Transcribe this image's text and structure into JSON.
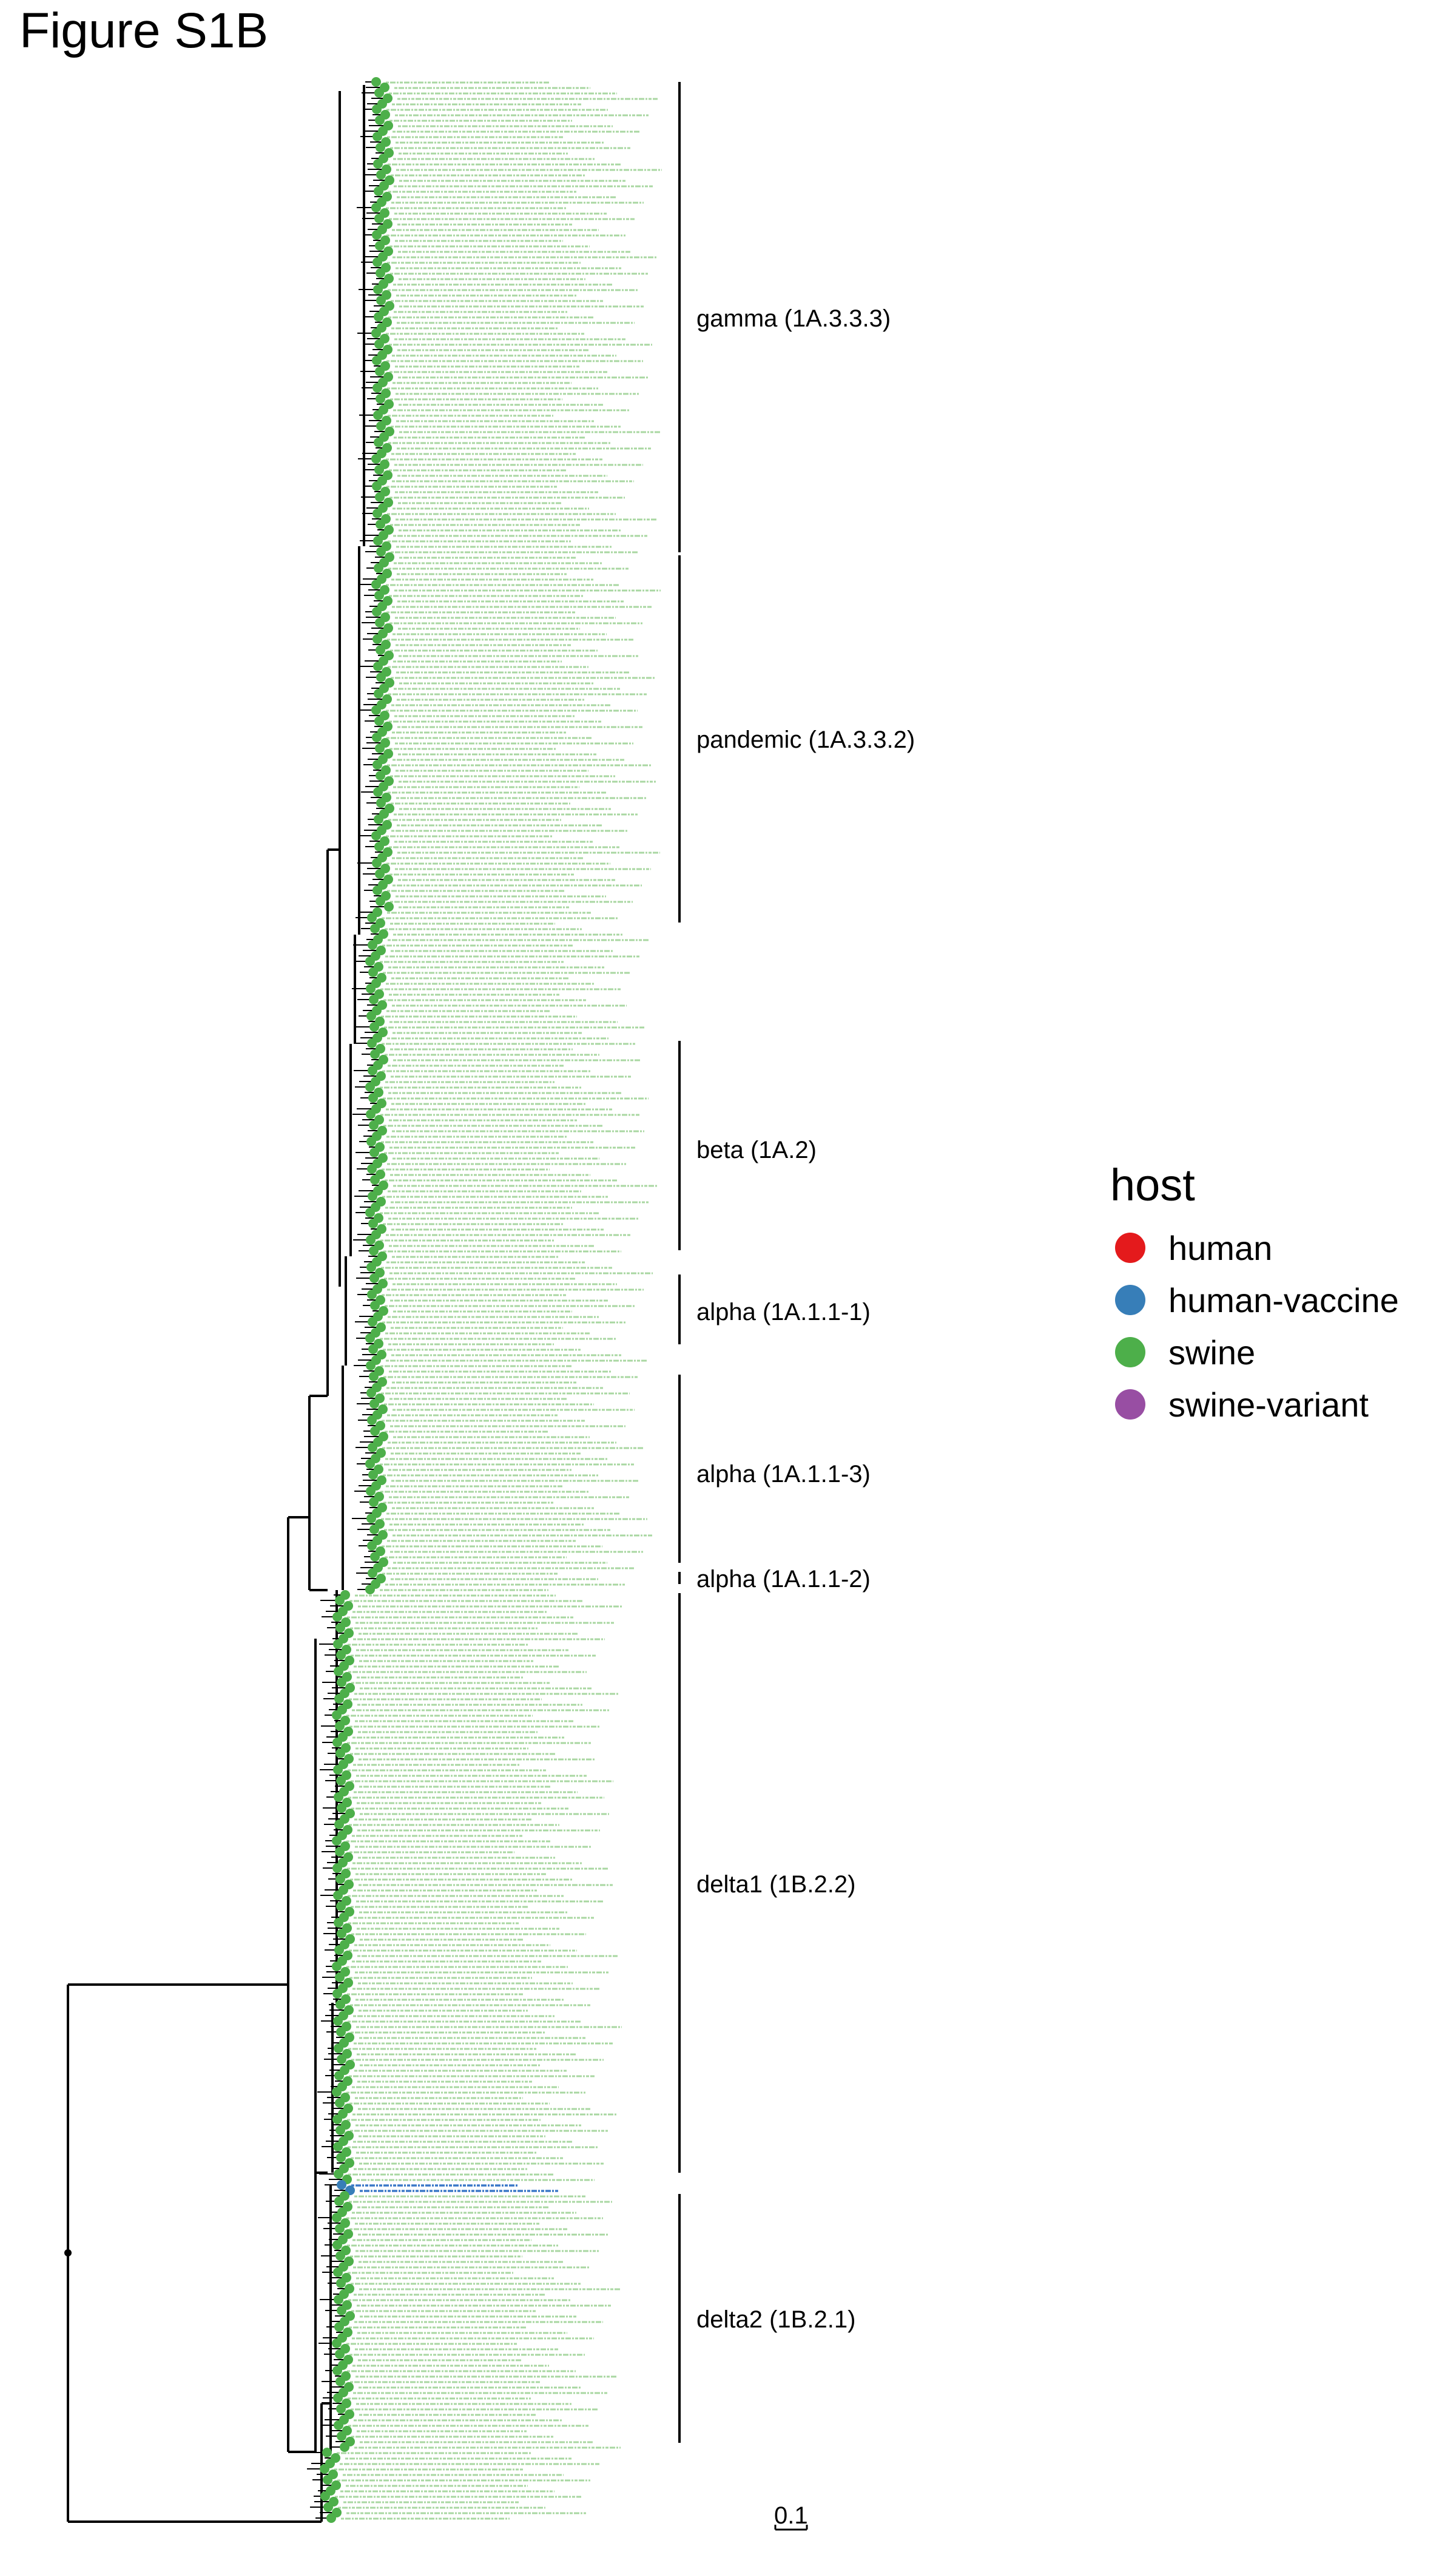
{
  "title": "Figure S1B",
  "legend": {
    "title": "host",
    "items": [
      {
        "label": "human",
        "color": "#e41a1c"
      },
      {
        "label": "human-vaccine",
        "color": "#377eb8"
      },
      {
        "label": "swine",
        "color": "#4daf4a"
      },
      {
        "label": "swine-variant",
        "color": "#984ea3"
      }
    ]
  },
  "clades": [
    {
      "label": "gamma (1A.3.3.3)"
    },
    {
      "label": "pandemic (1A.3.3.2)"
    },
    {
      "label": "beta (1A.2)"
    },
    {
      "label": "alpha (1A.1.1-1)"
    },
    {
      "label": "alpha (1A.1.1-3)"
    },
    {
      "label": "alpha (1A.1.1-2)"
    },
    {
      "label": "delta1 (1B.2.2)"
    },
    {
      "label": "delta2 (1B.2.1)"
    }
  ],
  "scale_bar": {
    "label": "0.1"
  },
  "colors": {
    "swine_tip_text": "#a9d7a2",
    "human_tip_text": "#e8303a",
    "vaccine_tip_text": "#3b78c8",
    "branch": "#000000"
  }
}
